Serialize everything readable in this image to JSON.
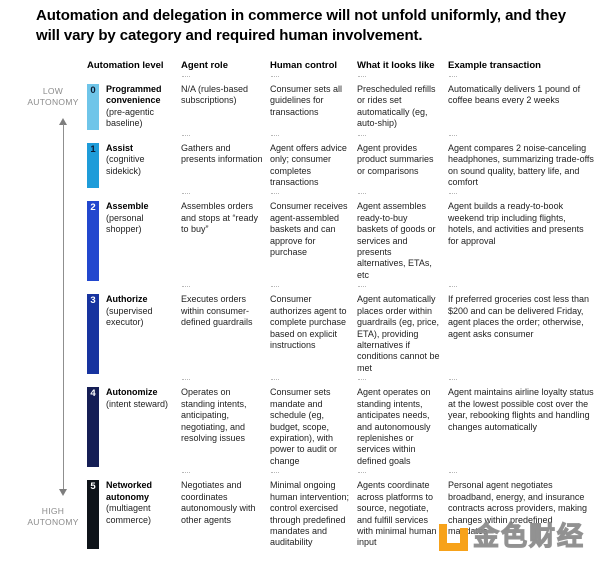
{
  "title": "Automation and delegation in commerce will not unfold uniformly, and they will vary by category and required human involvement.",
  "axis": {
    "low": "LOW AUTONOMY",
    "high": "HIGH AUTONOMY",
    "arrow_color": "#8f8f8f"
  },
  "table": {
    "headers": [
      "Automation level",
      "Agent role",
      "Human control",
      "What it looks like",
      "Example transaction"
    ],
    "rows": [
      {
        "num": "0",
        "name": "Programmed convenience",
        "qualifier": "(pre-agentic baseline)",
        "agent_role": "N/A (rules-based subscriptions)",
        "human_control": "Consumer sets all guidelines for transactions",
        "what_it_looks_like": "Prescheduled refills or rides set automatically (eg, auto-ship)",
        "example_transaction": "Automatically delivers 1 pound of coffee beans every 2 weeks",
        "badge_bg": "#6FC5E9",
        "badge_fg": "#0B1B33"
      },
      {
        "num": "1",
        "name": "Assist",
        "qualifier": "(cognitive sidekick)",
        "agent_role": "Gathers and presents information",
        "human_control": "Agent offers advice only; consumer completes transactions",
        "what_it_looks_like": "Agent provides product summaries or comparisons",
        "example_transaction": "Agent compares 2 noise-canceling headphones, summarizing trade-offs on sound quality, battery life, and comfort",
        "badge_bg": "#1E9CD9",
        "badge_fg": "#0B1B33"
      },
      {
        "num": "2",
        "name": "Assemble",
        "qualifier": "(personal shopper)",
        "agent_role": "Assembles orders and stops at “ready to buy”",
        "human_control": "Consumer receives agent-assembled baskets and can approve for purchase",
        "what_it_looks_like": "Agent assembles ready-to-buy baskets of goods or services and presents alternatives, ETAs, etc",
        "example_transaction": "Agent builds a ready-to-book weekend trip including flights, hotels, and activities and presents for approval",
        "badge_bg": "#2247CE",
        "badge_fg": "#FFFFFF"
      },
      {
        "num": "3",
        "name": "Authorize",
        "qualifier": "(supervised executor)",
        "agent_role": "Executes orders within consumer-defined guardrails",
        "human_control": "Consumer authorizes agent to complete purchase based on explicit instructions",
        "what_it_looks_like": "Agent automatically places order within guardrails (eg, price, ETA), providing alternatives if conditions cannot be met",
        "example_transaction": "If preferred groceries cost less than $200 and can be delivered Friday, agent places the order; otherwise, agent asks consumer",
        "badge_bg": "#17339F",
        "badge_fg": "#FFFFFF"
      },
      {
        "num": "4",
        "name": "Autonomize",
        "qualifier": "(intent steward)",
        "agent_role": "Operates on standing intents, anticipating, negotiating, and resolving issues",
        "human_control": "Consumer sets mandate and schedule (eg, budget, scope, expiration), with power to audit or change",
        "what_it_looks_like": "Agent operates on standing intents, anticipates needs, and autonomously replenishes or services within defined goals",
        "example_transaction": "Agent maintains airline loyalty status at the lowest possible cost over the year, rebooking flights and handling changes automatically",
        "badge_bg": "#151E55",
        "badge_fg": "#FFFFFF"
      },
      {
        "num": "5",
        "name": "Networked autonomy",
        "qualifier": "(multiagent commerce)",
        "agent_role": "Negotiates and coordinates autonomously with other agents",
        "human_control": "Minimal ongoing human intervention; control exercised through predefined mandates and auditability",
        "what_it_looks_like": "Agents coordinate across platforms to source, negotiate, and fulfill services with minimal human input",
        "example_transaction": "Personal agent negotiates broadband, energy, and insurance contracts across providers, making changes within predefined mandates",
        "badge_bg": "#0E1319",
        "badge_fg": "#FFFFFF"
      }
    ]
  },
  "watermark": {
    "text": "金色财经",
    "logo_color": "#F7A21A"
  }
}
